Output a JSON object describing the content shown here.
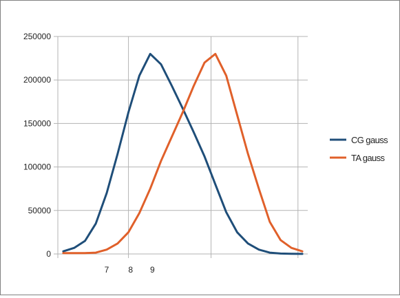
{
  "chart_data": {
    "type": "line",
    "x": [
      1,
      2,
      3,
      4,
      5,
      6,
      7,
      8,
      9,
      10,
      11,
      12,
      13,
      14,
      15,
      16,
      17,
      18,
      19,
      20,
      21,
      22,
      23
    ],
    "x_tick_labels": [
      {
        "x": 5,
        "label": "7"
      },
      {
        "x": 7.2,
        "label": "8"
      },
      {
        "x": 9.2,
        "label": "9"
      }
    ],
    "x_gridlines": [
      7,
      14.6,
      22.6
    ],
    "y_ticks": [
      0,
      50000,
      100000,
      150000,
      200000,
      250000
    ],
    "y_tick_labels": [
      "0",
      "50000",
      "100000",
      "150000",
      "200000",
      "250000"
    ],
    "ylim": [
      0,
      250000
    ],
    "xlim": [
      0.5,
      23.5
    ],
    "grid": true,
    "legend_position": "right",
    "series": [
      {
        "name": "CG gauss",
        "color": "#1f4e79",
        "values": [
          3000,
          7000,
          15000,
          35000,
          70000,
          115000,
          163000,
          205000,
          230000,
          218000,
          193000,
          167000,
          140000,
          112000,
          80000,
          48000,
          25000,
          12000,
          5000,
          1500,
          500,
          200,
          100
        ]
      },
      {
        "name": "TA gauss",
        "color": "#e0602a",
        "values": [
          1000,
          1000,
          1000,
          1500,
          5000,
          12000,
          25000,
          47000,
          75000,
          107000,
          135000,
          163000,
          193000,
          220000,
          230000,
          205000,
          160000,
          115000,
          75000,
          37000,
          16000,
          7000,
          3000
        ]
      }
    ]
  }
}
